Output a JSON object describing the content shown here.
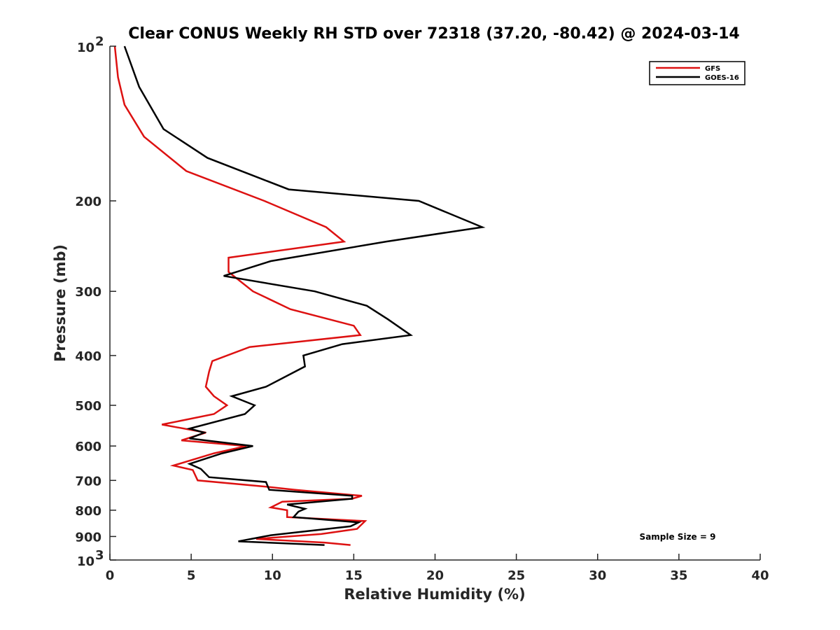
{
  "chart_data": {
    "type": "line",
    "title": "Clear CONUS Weekly RH STD over 72318 (37.20, -80.42) @ 2024-03-14",
    "xlabel": "Relative Humidity (%)",
    "ylabel": "Pressure (mb)",
    "xlim": [
      0,
      40
    ],
    "ylim": [
      100,
      1000
    ],
    "yscale": "log",
    "y_reversed": true,
    "x_ticks": [
      "0",
      "5",
      "10",
      "15",
      "20",
      "25",
      "30",
      "35",
      "40"
    ],
    "y_ticks": [
      {
        "value": 100,
        "base": "10",
        "exp": "2"
      },
      {
        "value": 200,
        "label": "200"
      },
      {
        "value": 300,
        "label": "300"
      },
      {
        "value": 400,
        "label": "400"
      },
      {
        "value": 500,
        "label": "500"
      },
      {
        "value": 600,
        "label": "600"
      },
      {
        "value": 700,
        "label": "700"
      },
      {
        "value": 800,
        "label": "800"
      },
      {
        "value": 900,
        "label": "900"
      },
      {
        "value": 1000,
        "base": "10",
        "exp": "3"
      }
    ],
    "grid": false,
    "legend_position": "top-right",
    "annotation": "Sample Size = 9",
    "series": [
      {
        "name": "GFS",
        "color": "#dd1111",
        "points": [
          [
            0.3,
            100
          ],
          [
            0.5,
            115
          ],
          [
            0.9,
            130
          ],
          [
            2.1,
            150
          ],
          [
            4.7,
            175
          ],
          [
            9.5,
            200
          ],
          [
            13.3,
            225
          ],
          [
            14.4,
            240
          ],
          [
            7.3,
            258
          ],
          [
            7.3,
            275
          ],
          [
            8.8,
            300
          ],
          [
            11.1,
            325
          ],
          [
            15.0,
            350
          ],
          [
            15.4,
            365
          ],
          [
            8.6,
            385
          ],
          [
            6.3,
            410
          ],
          [
            6.1,
            430
          ],
          [
            5.9,
            460
          ],
          [
            6.4,
            480
          ],
          [
            7.2,
            500
          ],
          [
            6.4,
            520
          ],
          [
            3.2,
            545
          ],
          [
            5.9,
            565
          ],
          [
            4.4,
            585
          ],
          [
            8.4,
            600
          ],
          [
            6.4,
            620
          ],
          [
            3.9,
            655
          ],
          [
            5.1,
            668
          ],
          [
            5.4,
            700
          ],
          [
            9.6,
            720
          ],
          [
            11.4,
            730
          ],
          [
            15.5,
            750
          ],
          [
            14.9,
            760
          ],
          [
            10.6,
            770
          ],
          [
            9.9,
            790
          ],
          [
            10.9,
            800
          ],
          [
            10.9,
            825
          ],
          [
            15.7,
            840
          ],
          [
            15.2,
            870
          ],
          [
            13.0,
            890
          ],
          [
            9.0,
            910
          ],
          [
            13.2,
            925
          ],
          [
            14.8,
            935
          ]
        ]
      },
      {
        "name": "GOES-16",
        "color": "#000000",
        "points": [
          [
            0.9,
            100
          ],
          [
            1.8,
            120
          ],
          [
            3.3,
            145
          ],
          [
            6.0,
            165
          ],
          [
            11.0,
            190
          ],
          [
            19.0,
            200
          ],
          [
            22.9,
            225
          ],
          [
            17.0,
            240
          ],
          [
            9.9,
            262
          ],
          [
            7.0,
            280
          ],
          [
            12.6,
            300
          ],
          [
            15.8,
            320
          ],
          [
            17.1,
            340
          ],
          [
            18.5,
            365
          ],
          [
            14.3,
            380
          ],
          [
            11.9,
            400
          ],
          [
            12.0,
            420
          ],
          [
            9.6,
            460
          ],
          [
            7.5,
            480
          ],
          [
            8.9,
            500
          ],
          [
            8.3,
            520
          ],
          [
            4.9,
            555
          ],
          [
            5.8,
            565
          ],
          [
            4.9,
            580
          ],
          [
            8.8,
            600
          ],
          [
            6.9,
            620
          ],
          [
            4.9,
            650
          ],
          [
            5.6,
            665
          ],
          [
            6.1,
            690
          ],
          [
            9.6,
            705
          ],
          [
            9.8,
            730
          ],
          [
            14.9,
            750
          ],
          [
            14.9,
            760
          ],
          [
            10.9,
            780
          ],
          [
            12.0,
            795
          ],
          [
            11.6,
            805
          ],
          [
            11.3,
            825
          ],
          [
            15.3,
            845
          ],
          [
            14.8,
            860
          ],
          [
            9.9,
            895
          ],
          [
            7.9,
            920
          ],
          [
            13.2,
            935
          ]
        ]
      }
    ]
  }
}
